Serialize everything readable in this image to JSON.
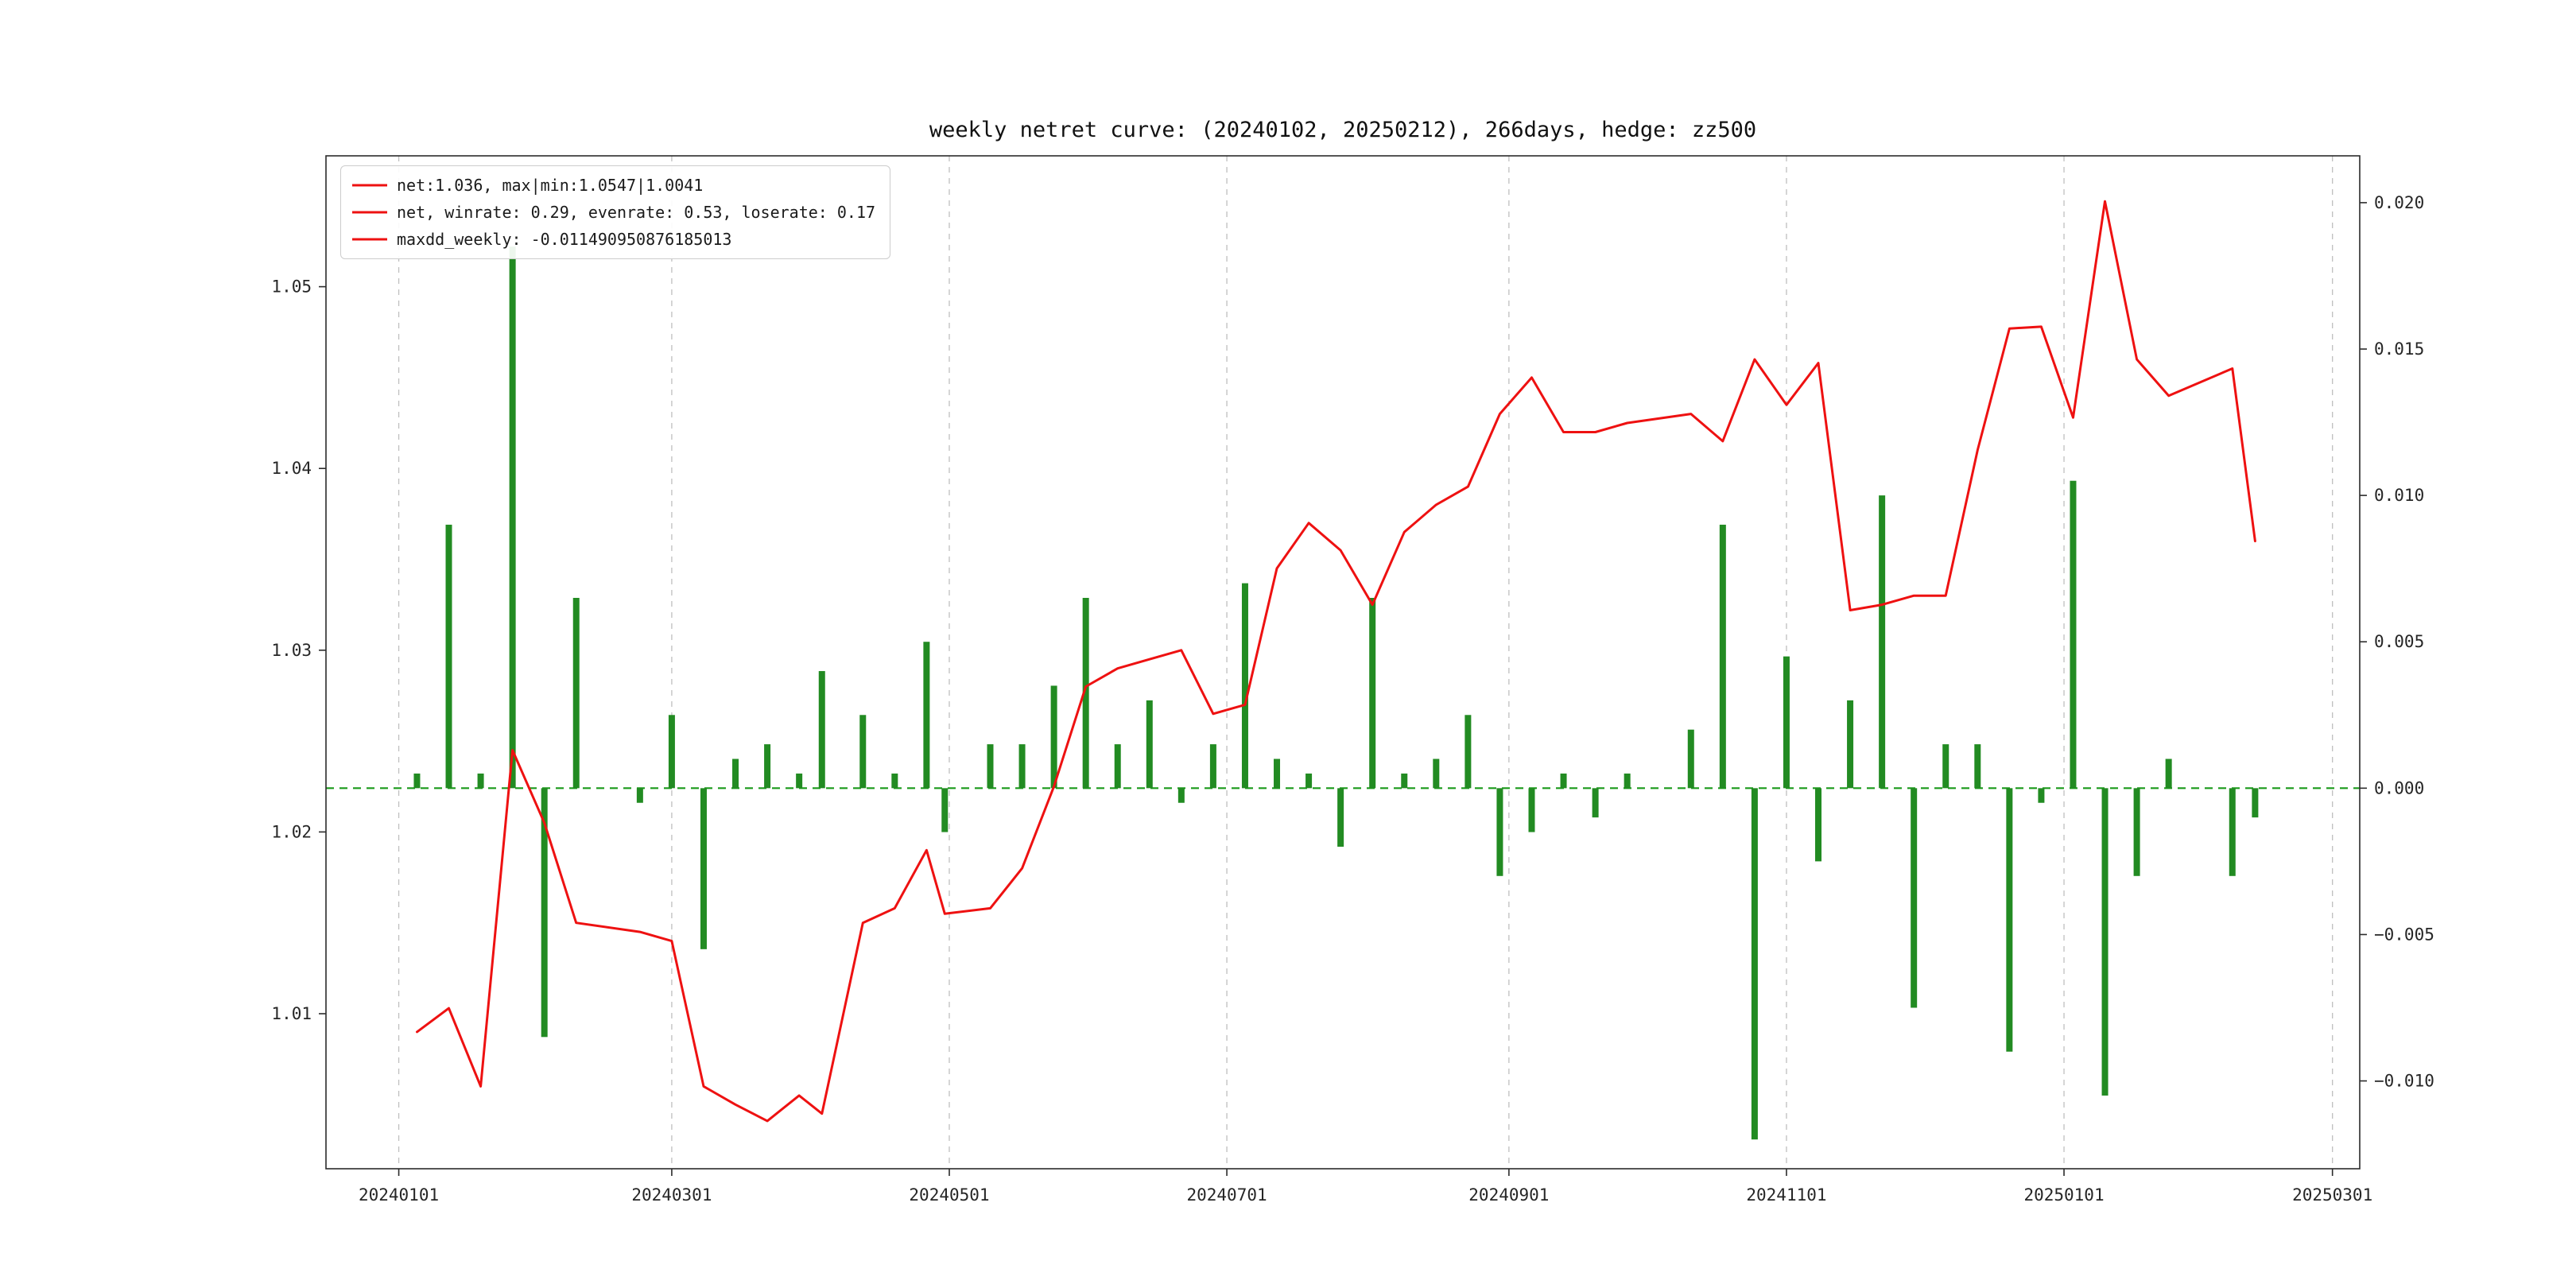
{
  "chart_data": {
    "type": "combo",
    "title": "weekly netret curve: (20240102, 20250212), 266days, hedge: zz500",
    "legend": [
      "net:1.036, max|min:1.0547|1.0041",
      "net, winrate: 0.29, evenrate: 0.53, loserate: 0.17",
      "maxdd_weekly: -0.011490950876185013"
    ],
    "legend_position": "upper-left",
    "grid": "vertical-dashed",
    "colors": {
      "line": "#ee1111",
      "bar": "#228B22",
      "zero_line": "#1a9a1a",
      "grid": "#bfbfbf",
      "spine": "#2b2b2b",
      "text": "#262626"
    },
    "x_axis": {
      "tick_labels": [
        "20240101",
        "20240301",
        "20240501",
        "20240701",
        "20240901",
        "20241101",
        "20250101",
        "20250301"
      ],
      "range_dates": [
        "20231216",
        "20250307"
      ]
    },
    "left_axis": {
      "ticks": [
        1.01,
        1.02,
        1.03,
        1.04,
        1.05
      ],
      "range": [
        1.00147,
        1.0572
      ]
    },
    "right_axis": {
      "ticks": [
        -0.01,
        -0.005,
        0.0,
        0.005,
        0.01,
        0.015,
        0.02
      ],
      "range": [
        -0.013,
        0.0216
      ]
    },
    "zero_line_value": 0.0,
    "x": [
      "20240105",
      "20240112",
      "20240119",
      "20240126",
      "20240202",
      "20240209",
      "20240223",
      "20240301",
      "20240308",
      "20240315",
      "20240322",
      "20240329",
      "20240403",
      "20240412",
      "20240419",
      "20240426",
      "20240430",
      "20240510",
      "20240517",
      "20240524",
      "20240531",
      "20240607",
      "20240614",
      "20240621",
      "20240628",
      "20240705",
      "20240712",
      "20240719",
      "20240726",
      "20240802",
      "20240809",
      "20240816",
      "20240823",
      "20240830",
      "20240906",
      "20240913",
      "20240920",
      "20240927",
      "20241011",
      "20241018",
      "20241025",
      "20241101",
      "20241108",
      "20241115",
      "20241122",
      "20241129",
      "20241206",
      "20241213",
      "20241220",
      "20241227",
      "20250103",
      "20250110",
      "20250117",
      "20250124",
      "20250207",
      "20250212"
    ],
    "series": [
      {
        "name": "net",
        "type": "line",
        "axis": "left",
        "color": "#ee1111",
        "values": [
          1.009,
          1.0103,
          1.006,
          1.0245,
          1.0205,
          1.015,
          1.0145,
          1.014,
          1.006,
          1.005,
          1.0041,
          1.0055,
          1.0045,
          1.015,
          1.0158,
          1.019,
          1.0155,
          1.0158,
          1.018,
          1.0225,
          1.028,
          1.029,
          1.0295,
          1.03,
          1.0265,
          1.027,
          1.0345,
          1.037,
          1.0355,
          1.0325,
          1.0365,
          1.038,
          1.039,
          1.043,
          1.045,
          1.042,
          1.042,
          1.0425,
          1.043,
          1.0415,
          1.046,
          1.0435,
          1.0458,
          1.0322,
          1.0325,
          1.033,
          1.033,
          1.041,
          1.0477,
          1.0478,
          1.0428,
          1.0547,
          1.046,
          1.044,
          1.0455,
          1.036
        ]
      },
      {
        "name": "weekly_ret",
        "type": "bar",
        "axis": "right",
        "color": "#228B22",
        "values": [
          0.0005,
          0.009,
          0.0005,
          0.0185,
          -0.0085,
          0.0065,
          -0.0005,
          0.0025,
          -0.0055,
          0.001,
          0.0015,
          0.0005,
          0.004,
          0.0025,
          0.0005,
          0.005,
          -0.0015,
          0.0015,
          0.0015,
          0.0035,
          0.0065,
          0.0015,
          0.003,
          -0.0005,
          0.0015,
          0.007,
          0.001,
          0.0005,
          -0.002,
          0.0065,
          0.0005,
          0.001,
          0.0025,
          -0.003,
          -0.0015,
          0.0005,
          -0.001,
          0.0005,
          0.002,
          0.009,
          -0.012,
          0.0045,
          -0.0025,
          0.003,
          0.01,
          -0.0075,
          0.0015,
          0.0015,
          -0.009,
          -0.0005,
          0.0105,
          -0.0105,
          -0.003,
          0.001,
          -0.003,
          -0.001
        ]
      }
    ]
  }
}
